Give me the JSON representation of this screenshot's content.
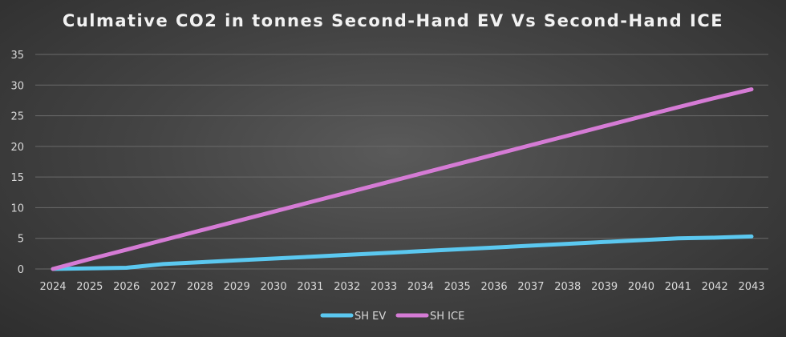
{
  "chart_data": {
    "type": "line",
    "title": "Culmative CO2 in tonnes Second-Hand EV Vs Second-Hand ICE",
    "xlabel": "",
    "ylabel": "",
    "categories": [
      "2024",
      "2025",
      "2026",
      "2027",
      "2028",
      "2029",
      "2030",
      "2031",
      "2032",
      "2033",
      "2034",
      "2035",
      "2036",
      "2037",
      "2038",
      "2039",
      "2040",
      "2041",
      "2042",
      "2043"
    ],
    "ylim": [
      0,
      35
    ],
    "yticks": [
      "0",
      "5",
      "10",
      "15",
      "20",
      "25",
      "30",
      "35"
    ],
    "grid": true,
    "legend_position": "bottom",
    "series": [
      {
        "name": "SH EV",
        "color": "#5bc8f0",
        "values": [
          0,
          0.1,
          0.2,
          0.8,
          1.1,
          1.4,
          1.7,
          2.0,
          2.3,
          2.6,
          2.9,
          3.2,
          3.5,
          3.8,
          4.1,
          4.4,
          4.7,
          5.0,
          5.1,
          5.3
        ]
      },
      {
        "name": "SH ICE",
        "color": "#d57bd5",
        "values": [
          0,
          1.6,
          3.15,
          4.7,
          6.25,
          7.8,
          9.35,
          10.9,
          12.45,
          14.0,
          15.55,
          17.1,
          18.65,
          20.2,
          21.75,
          23.3,
          24.85,
          26.4,
          27.9,
          29.3
        ]
      }
    ]
  }
}
